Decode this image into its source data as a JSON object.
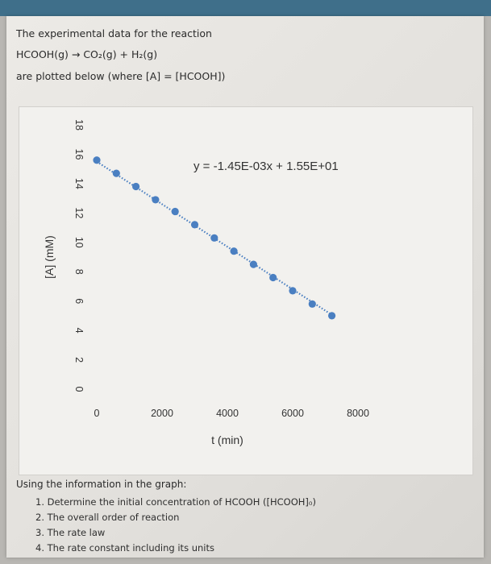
{
  "intro": {
    "line1": "The experimental data for the reaction",
    "line2": "HCOOH(g) → CO₂(g) + H₂(g)",
    "line3": "are plotted below (where [A] = [HCOOH])"
  },
  "questions": {
    "heading": "Using the information in the graph:",
    "items": [
      "1. Determine the initial concentration of HCOOH ([HCOOH]₀)",
      "2. The overall order of reaction",
      "3. The rate law",
      "4. The rate constant including its units"
    ]
  },
  "chart_data": {
    "type": "scatter",
    "xlabel": "t (min)",
    "ylabel": "[A] (mM)",
    "xlim": [
      0,
      8000
    ],
    "ylim": [
      0,
      18
    ],
    "xticks": [
      "0",
      "2000",
      "4000",
      "6000",
      "8000"
    ],
    "yticks": [
      "0",
      "2",
      "4",
      "6",
      "8",
      "10",
      "12",
      "14",
      "16",
      "18"
    ],
    "trendline_label": "y = -1.45E-03x + 1.55E+01",
    "trendline": {
      "slope": -0.00145,
      "intercept": 15.5,
      "style": "dotted"
    },
    "series": [
      {
        "x": [
          0,
          600,
          1200,
          1800,
          2400,
          3000,
          3600,
          4200,
          4800,
          5400,
          6000,
          6600,
          7200
        ],
        "y": [
          15.6,
          14.7,
          13.8,
          12.9,
          12.1,
          11.2,
          10.3,
          9.4,
          8.5,
          7.6,
          6.7,
          5.8,
          5.0
        ]
      }
    ],
    "colors": {
      "marker": "#4a7fc1",
      "trendline": "#4a7fc1",
      "text": "#333333"
    }
  }
}
